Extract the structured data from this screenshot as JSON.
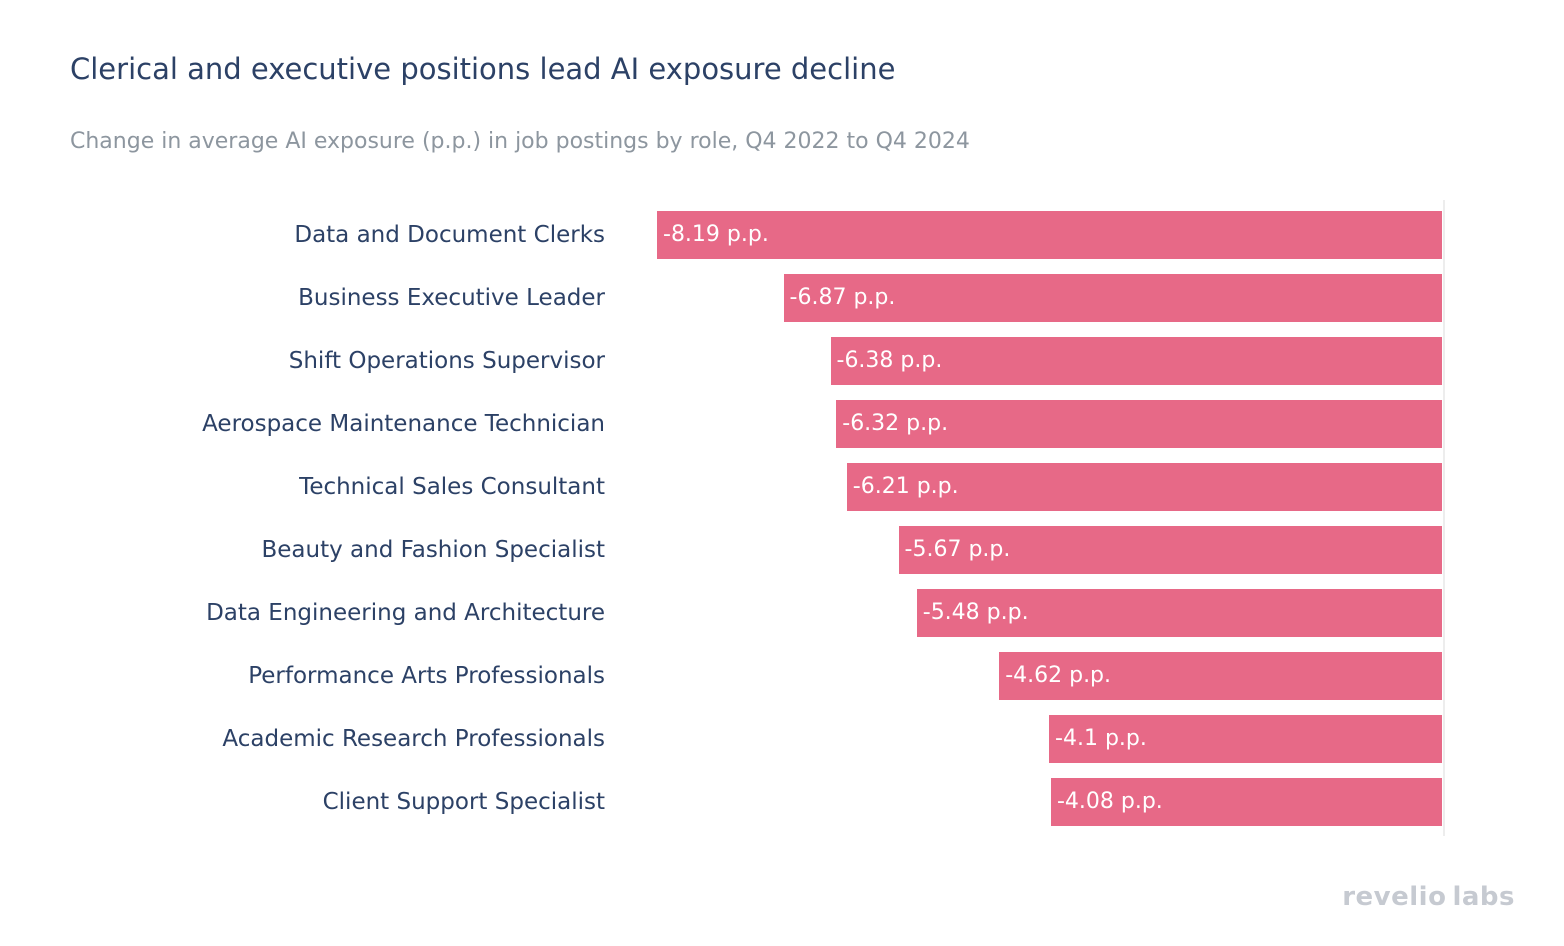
{
  "header": {
    "title": "Clerical and executive positions lead AI exposure decline",
    "subtitle": "Change in average AI exposure (p.p.) in job postings by role, Q4 2022 to Q4 2024"
  },
  "footer": {
    "logo_part1": "revelio",
    "logo_part2": "labs"
  },
  "colors": {
    "bar": "#e76987",
    "title_text": "#2c4166",
    "subtitle_text": "#8d969f",
    "bar_value_text": "#ffffff",
    "axis_line": "#ededed",
    "logo_text": "#c6cad1",
    "background": "#ffffff"
  },
  "chart_data": {
    "type": "bar",
    "orientation": "horizontal",
    "anchor": "right",
    "title": "Clerical and executive positions lead AI exposure decline",
    "subtitle": "Change in average AI exposure (p.p.) in job postings by role, Q4 2022 to Q4 2024",
    "unit": "p.p.",
    "xlim": [
      -8.19,
      0
    ],
    "grid": false,
    "legend": false,
    "categories": [
      "Data and Document Clerks",
      "Business Executive Leader",
      "Shift Operations Supervisor",
      "Aerospace Maintenance Technician",
      "Technical Sales Consultant",
      "Beauty and Fashion Specialist",
      "Data Engineering and Architecture",
      "Performance Arts Professionals",
      "Academic Research Professionals",
      "Client Support Specialist"
    ],
    "values": [
      -8.19,
      -6.87,
      -6.38,
      -6.32,
      -6.21,
      -5.67,
      -5.48,
      -4.62,
      -4.1,
      -4.08
    ],
    "value_labels": [
      "-8.19 p.p.",
      "-6.87 p.p.",
      "-6.38 p.p.",
      "-6.32 p.p.",
      "-6.21 p.p.",
      "-5.67 p.p.",
      "-5.48 p.p.",
      "-4.62 p.p.",
      "-4.1 p.p.",
      "-4.08 p.p."
    ]
  }
}
